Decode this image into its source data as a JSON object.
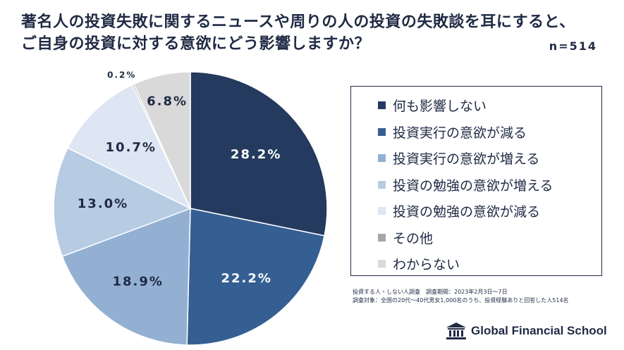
{
  "title": {
    "line1": "著名人の投資失敗に関するニュースや周りの人の投資の失敗談を耳にすると、",
    "line2": "ご自身の投資に対する意欲にどう影響しますか？"
  },
  "sample_size": "n=514",
  "source": {
    "line1": "投資する人・しない人調査　調査期間：2023年2月3日～7日",
    "line2": "調査対象：全国の20代～40代男女1,000名のうち、投資経験ありと回答した人514名"
  },
  "logo": {
    "text": "Global Financial School",
    "icon": "school-building-icon"
  },
  "colors": {
    "text": "#1f2a44",
    "border": "#1f2a44"
  },
  "chart_data": {
    "type": "pie",
    "start_angle_deg": 0,
    "direction": "clockwise",
    "categories": [
      "何も影響しない",
      "投資実行の意欲が減る",
      "投資実行の意欲が増える",
      "投資の勉強の意欲が増える",
      "投資の勉強の意欲が減る",
      "その他",
      "わからない"
    ],
    "values": [
      28.2,
      22.2,
      18.9,
      13.0,
      10.7,
      0.2,
      6.8
    ],
    "labels": [
      "28.2%",
      "22.2%",
      "18.9%",
      "13.0%",
      "10.7%",
      "0.2%",
      "6.8%"
    ],
    "colors": [
      "#243a5e",
      "#355f93",
      "#93b0d3",
      "#b7cbe3",
      "#dde6f2",
      "#a6a6a6",
      "#d9d9d9"
    ],
    "label_colors": [
      "#ffffff",
      "#ffffff",
      "#1f2a44",
      "#1f2a44",
      "#1f2a44",
      "#1f2a44",
      "#1f2a44"
    ],
    "legend_placement": "right"
  }
}
